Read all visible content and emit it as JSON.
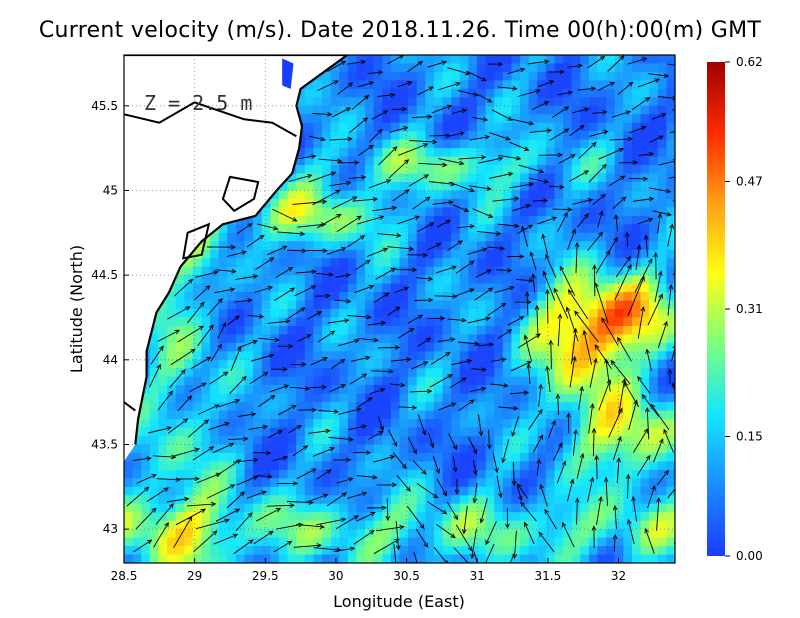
{
  "title": "Current velocity (m/s). Date 2018.11.26. Time 00(h):00(m) GMT",
  "map": {
    "depth_label": "Z = 2.5 m",
    "xlabel": "Longitude (East)",
    "ylabel": "Latitude (North)",
    "xlim": [
      28.5,
      32.4
    ],
    "ylim": [
      42.8,
      45.8
    ],
    "x_ticks": [
      "28.5",
      "29",
      "29.5",
      "30",
      "30.5",
      "31",
      "31.5",
      "32"
    ],
    "y_ticks": [
      "45.5",
      "45",
      "44.5",
      "44",
      "43.5",
      "43"
    ],
    "grid": true
  },
  "colorbar": {
    "ticks": [
      "0.62",
      "0.47",
      "0.31",
      "0.15",
      "0.00"
    ],
    "range": [
      0.0,
      0.62
    ],
    "colors": [
      "#1a3cff",
      "#1a8cff",
      "#14e6ff",
      "#7cff7c",
      "#ffff14",
      "#ffa014",
      "#ff2a00",
      "#a00000"
    ]
  },
  "colors": {
    "land": "#ffffff",
    "coastline": "#000000",
    "arrows": "#000000"
  }
}
